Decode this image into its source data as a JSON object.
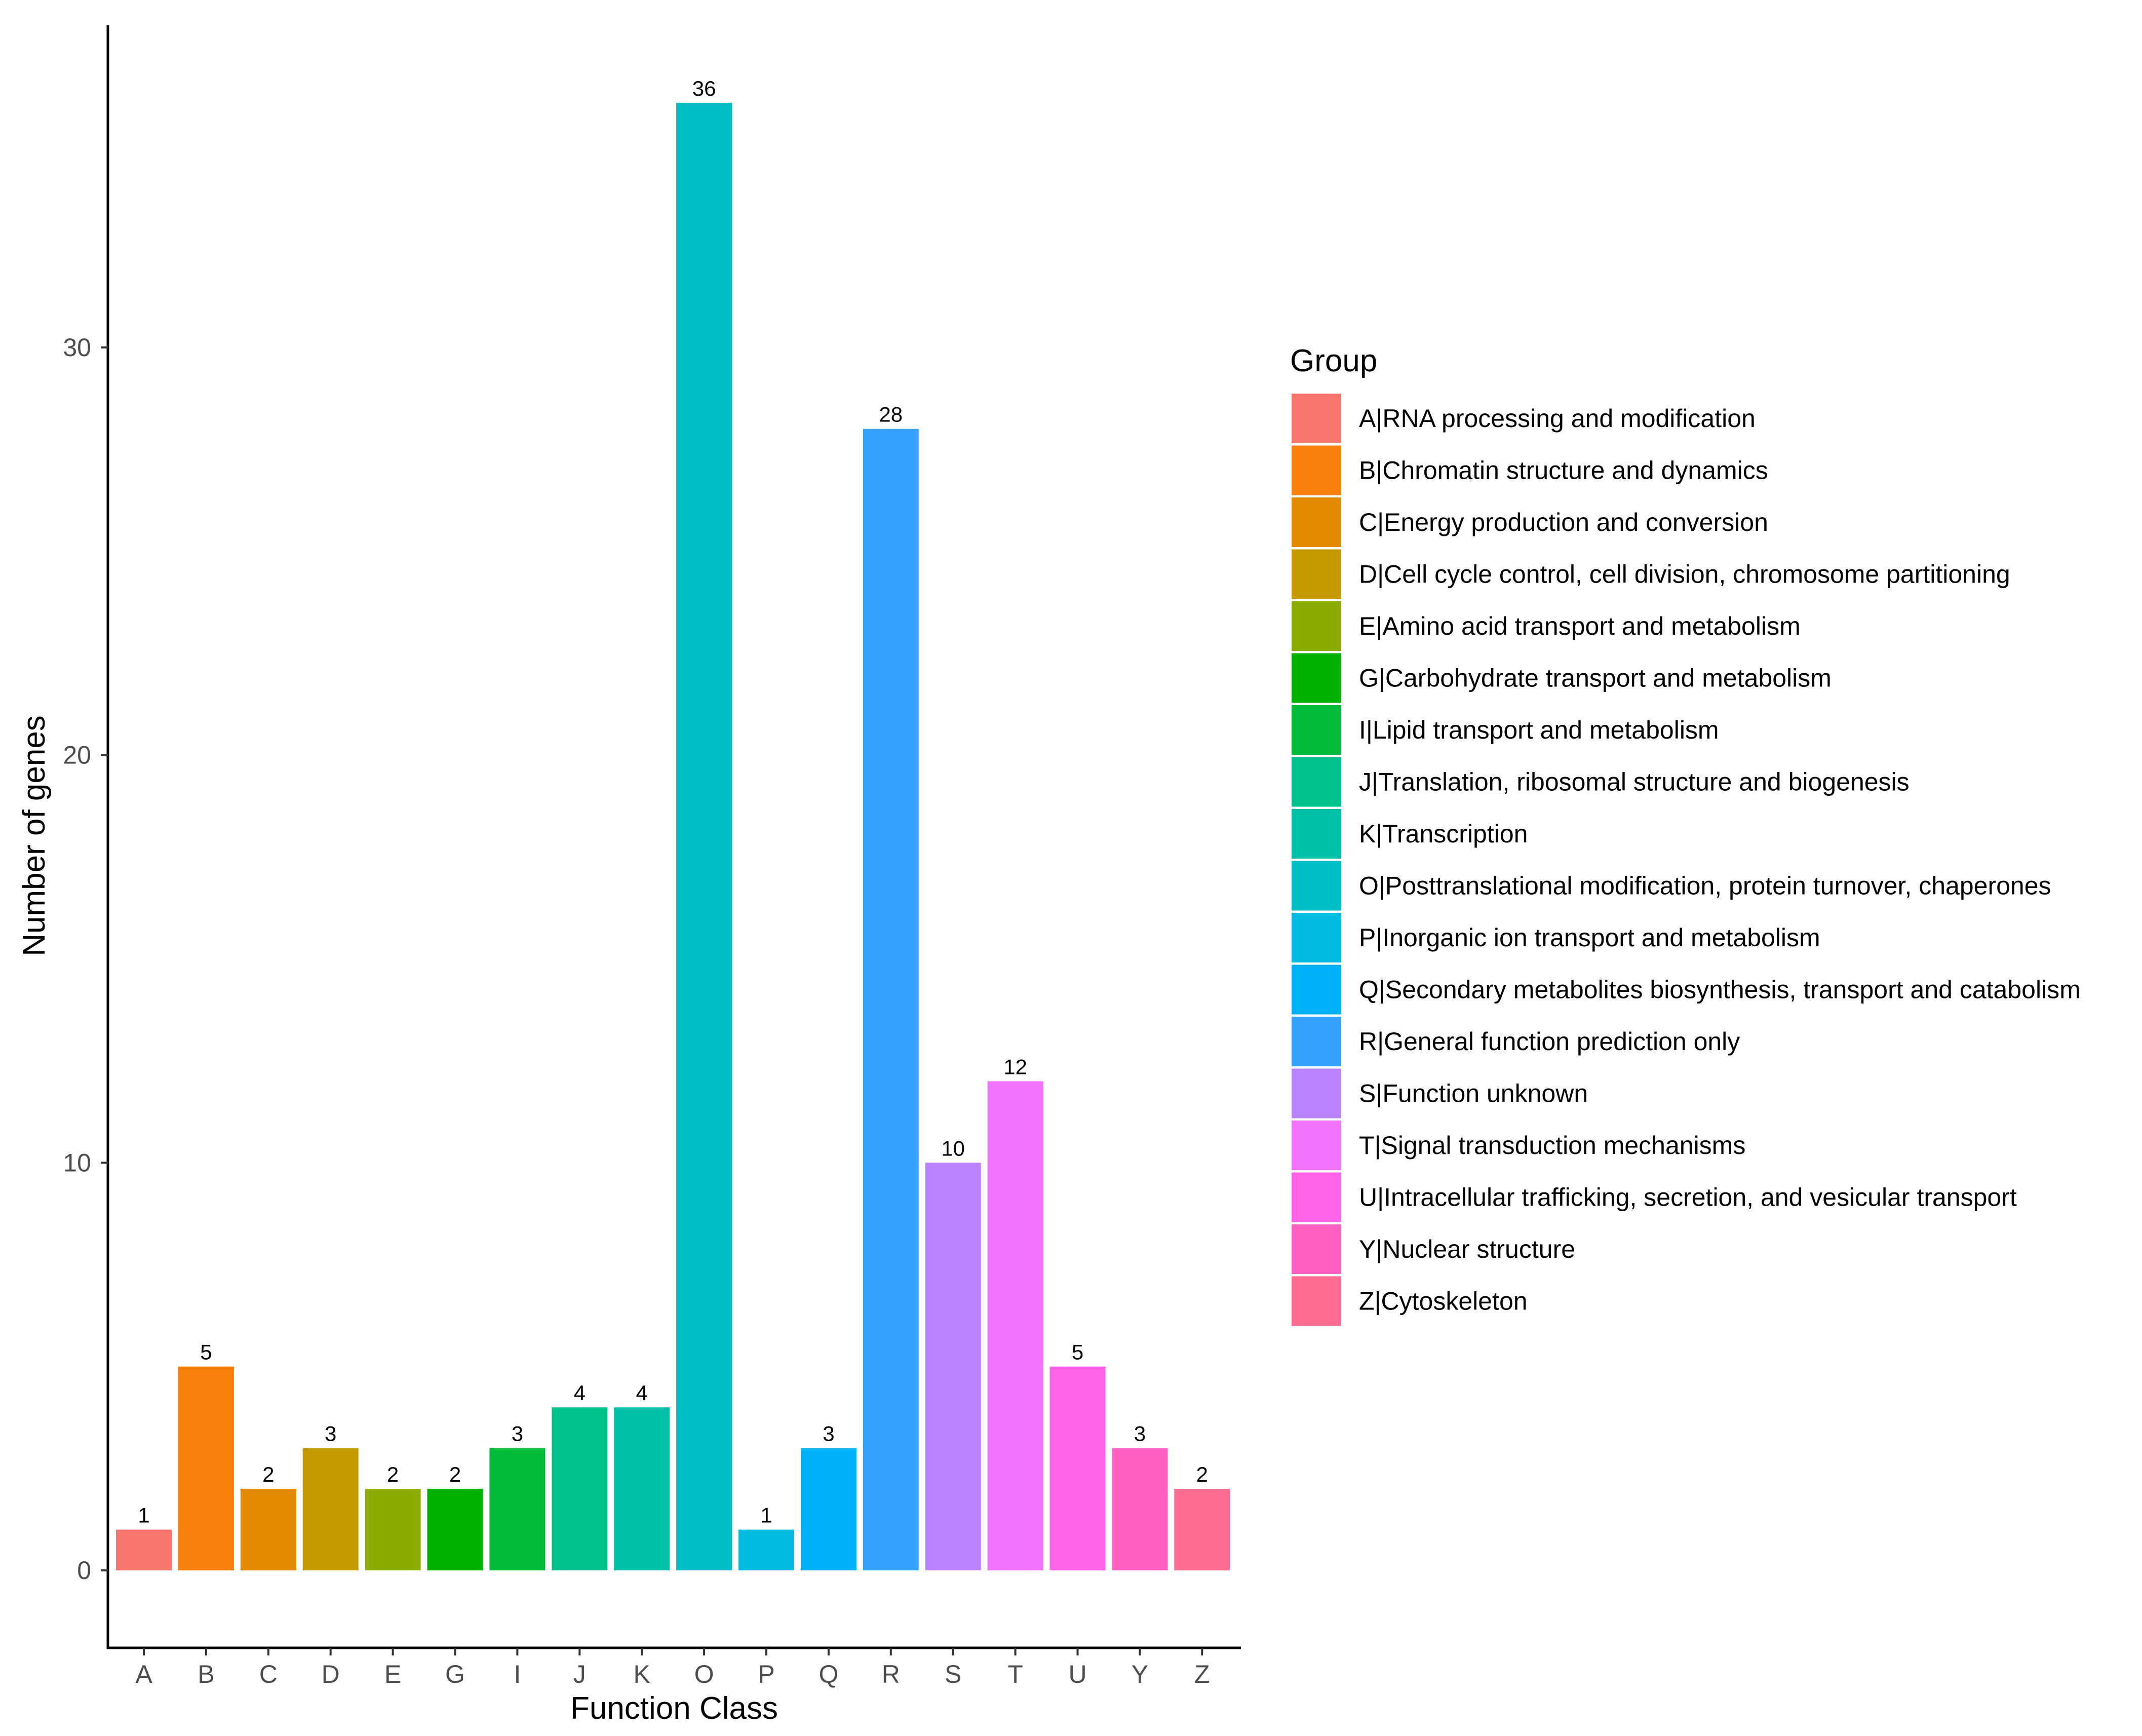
{
  "chart_data": {
    "type": "bar",
    "title": "",
    "xlabel": "Function Class",
    "ylabel": "Number of genes",
    "ylim": [
      -1.9,
      37.9
    ],
    "yticks": [
      0,
      10,
      20,
      30
    ],
    "grid": false,
    "legend_title": "Group",
    "legend_position": "right",
    "categories": [
      "A",
      "B",
      "C",
      "D",
      "E",
      "G",
      "I",
      "J",
      "K",
      "O",
      "P",
      "Q",
      "R",
      "S",
      "T",
      "U",
      "Y",
      "Z"
    ],
    "values": [
      1,
      5,
      2,
      3,
      2,
      2,
      3,
      4,
      4,
      36,
      1,
      3,
      28,
      10,
      12,
      5,
      3,
      2
    ],
    "colors": [
      "#F8766D",
      "#F8810E",
      "#E38900",
      "#C49A00",
      "#8BAB00",
      "#00B100",
      "#00BA38",
      "#00C08B",
      "#00C1A7",
      "#00BFC4",
      "#00BAE0",
      "#00B0F6",
      "#35A2FF",
      "#B983FF",
      "#F375FD",
      "#FF63E6",
      "#FF61C3",
      "#FF6C91"
    ],
    "legend_labels": [
      "A|RNA processing and modification",
      "B|Chromatin structure and dynamics",
      "C|Energy production and conversion",
      "D|Cell cycle control, cell division, chromosome partitioning",
      "E|Amino acid transport and metabolism",
      "G|Carbohydrate transport and metabolism",
      "I|Lipid transport and metabolism",
      "J|Translation, ribosomal structure and biogenesis",
      "K|Transcription",
      "O|Posttranslational modification, protein turnover, chaperones",
      "P|Inorganic ion transport and metabolism",
      "Q|Secondary metabolites biosynthesis, transport and catabolism",
      "R|General function prediction only",
      "S|Function unknown",
      "T|Signal transduction mechanisms",
      "U|Intracellular trafficking, secretion, and vesicular transport",
      "Y|Nuclear structure",
      "Z|Cytoskeleton"
    ]
  }
}
